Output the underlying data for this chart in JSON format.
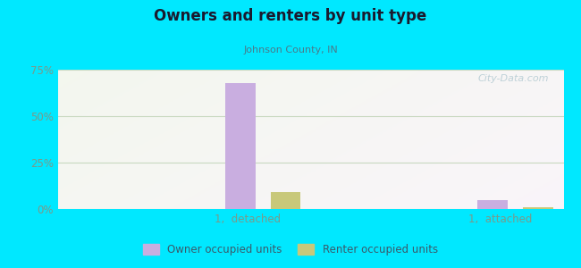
{
  "title": "Owners and renters by unit type",
  "subtitle": "Johnson County, IN",
  "categories": [
    "1,  detached",
    "1,  attached"
  ],
  "owner_values": [
    68.0,
    5.0
  ],
  "renter_values": [
    9.0,
    1.2
  ],
  "owner_color": "#c9aee0",
  "renter_color": "#c8c87a",
  "ylim": [
    0,
    75
  ],
  "yticks": [
    0,
    25,
    50,
    75
  ],
  "ytick_labels": [
    "0%",
    "25%",
    "50%",
    "75%"
  ],
  "background_outer": "#00e8ff",
  "bar_width": 0.12,
  "legend_labels": [
    "Owner occupied units",
    "Renter occupied units"
  ],
  "watermark": "City-Data.com",
  "title_color": "#1a1a2e",
  "subtitle_color": "#4a7a8a",
  "tick_color": "#7a9a8a",
  "grid_color": "#c8d8c0"
}
